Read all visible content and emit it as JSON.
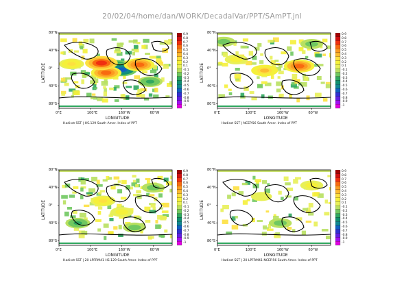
{
  "header": {
    "title": "20/02/04/home/dan/WORK/DecadalVar/PPT/SAmPT.jnl"
  },
  "axes": {
    "ylabel": "LATITUDE",
    "xlabel": "LONGITUDE",
    "x_ticks": [
      "0°E",
      "100°E",
      "160°W",
      "60°W"
    ],
    "y_ticks": [
      "80°N",
      "40°N",
      "0°",
      "40°S",
      "80°S"
    ]
  },
  "colorbar": {
    "labels": [
      "0.9",
      "0.8",
      "0.7",
      "0.6",
      "0.5",
      "0.4",
      "0.3",
      "0.2",
      "0.1",
      "-0.1",
      "-0.2",
      "-0.3",
      "-0.4",
      "-0.5",
      "-0.6",
      "-0.7",
      "-0.8",
      "-0.9",
      "-1"
    ],
    "colors": [
      "#a50000",
      "#d01010",
      "#f03010",
      "#f86a10",
      "#fb9a20",
      "#fdbb30",
      "#fde040",
      "#f5f03a",
      "#e8f058",
      "#b8e060",
      "#70c860",
      "#30a860",
      "#109070",
      "#108890",
      "#1060c0",
      "#3030d0",
      "#6020e0",
      "#a010f0",
      "#e000e0"
    ]
  },
  "chart_data": [
    {
      "type": "heatmap",
      "panel": "top-left",
      "title": "Hadisst SST | HS.129 South Amer. Index of PPT",
      "xlabel": "LONGITUDE",
      "ylabel": "LATITUDE",
      "legend": "right",
      "patches": [
        {
          "lon": 180,
          "lat": 5,
          "value": -0.5
        },
        {
          "lon": 200,
          "lat": -3,
          "value": -0.6
        },
        {
          "lon": 150,
          "lat": -10,
          "value": 0.6
        },
        {
          "lon": 135,
          "lat": 12,
          "value": 0.7
        },
        {
          "lon": 255,
          "lat": 8,
          "value": 0.6
        },
        {
          "lon": 40,
          "lat": 10,
          "value": 0.3
        },
        {
          "lon": 290,
          "lat": -30,
          "value": -0.3
        }
      ]
    },
    {
      "type": "heatmap",
      "panel": "top-right",
      "title": "Hadisst SST | NCEP.56 South Amer. Index of PPT",
      "xlabel": "LONGITUDE",
      "ylabel": "LATITUDE",
      "legend": "right",
      "patches": [
        {
          "lon": 260,
          "lat": 5,
          "value": 0.6
        },
        {
          "lon": 150,
          "lat": -5,
          "value": 0.4
        },
        {
          "lon": 60,
          "lat": 20,
          "value": 0.2
        },
        {
          "lon": 300,
          "lat": 55,
          "value": -0.2
        },
        {
          "lon": 20,
          "lat": 60,
          "value": -0.2
        }
      ]
    },
    {
      "type": "heatmap",
      "panel": "bottom-left",
      "title": "Hadisst SST | 20 LPFRM41 HS.129 South Amer. Index of PPT",
      "xlabel": "LONGITUDE",
      "ylabel": "LATITUDE",
      "legend": "right",
      "patches": [
        {
          "lon": 140,
          "lat": 10,
          "value": 0.3
        },
        {
          "lon": 200,
          "lat": -15,
          "value": 0.2
        },
        {
          "lon": 60,
          "lat": -40,
          "value": -0.3
        },
        {
          "lon": 300,
          "lat": 40,
          "value": -0.2
        },
        {
          "lon": 240,
          "lat": -50,
          "value": -0.2
        }
      ]
    },
    {
      "type": "heatmap",
      "panel": "bottom-right",
      "title": "Hadisst SST | 20 LPFRM41 NCEP.56 South Amer. Index of PPT",
      "xlabel": "LONGITUDE",
      "ylabel": "LATITUDE",
      "legend": "right",
      "patches": [
        {
          "lon": 140,
          "lat": 20,
          "value": 0.1
        },
        {
          "lon": 300,
          "lat": 45,
          "value": 0.2
        },
        {
          "lon": 200,
          "lat": -40,
          "value": -0.2
        }
      ]
    }
  ]
}
